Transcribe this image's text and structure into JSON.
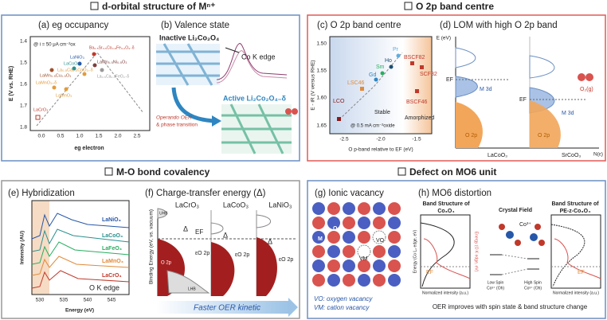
{
  "sections": [
    {
      "header": "d-orbital structure of Mⁿ⁺",
      "panels": [
        {
          "title": "(a) eg occupancy",
          "y_label": "E (V vs. RHE)",
          "x_label": "eg electron",
          "y_ticks": [
            "1.4",
            "1.5",
            "1.6",
            "1.7",
            "1.8"
          ],
          "x_ticks": [
            "0.0",
            "0.5",
            "1.0",
            "1.5",
            "2.0",
            "2.5"
          ],
          "note": "@ i = 50 μA cm⁻²ox",
          "labels": [
            "LaNiO₃",
            "LaCoO₃",
            "La₀.₅Ca₀.₅CoO₃₋δ",
            "LaMn₀.₅Cu₀.₅O₃",
            "LaMnO₃",
            "LaMnO₃₊δ",
            "LaCrO₃",
            "Ba₀.₅Sr₀.₅Co₀.₈Fe₀.₂O₃₋δ",
            "LaMn₀.₅Ni₀.₅O₃",
            "La₀.₅Ca₀.₅FeO₃₋δ"
          ]
        },
        {
          "title": "(b) Valence state",
          "labels": [
            "Inactive Li₂Co₂O₄",
            "Co K edge",
            "Active Li₂Co₂O₄₋δ",
            "Operando OER",
            "& phase transition"
          ]
        }
      ]
    },
    {
      "header": "O 2p band centre",
      "panels": [
        {
          "title": "(c) O 2p band centre",
          "y_label": "E - iR (V versus RHE)",
          "x_label": "O p-band relative to EF (eV)",
          "y_ticks": [
            "1.50",
            "1.55",
            "1.60",
            "1.65"
          ],
          "x_ticks": [
            "-2.5",
            "-2.0",
            "-1.5"
          ],
          "labels": [
            "LCO",
            "LSC46",
            "Gd",
            "Sm",
            "Ho",
            "Pr",
            "BSCF82",
            "SCF82",
            "BSCF46",
            "Stable",
            "Amorphized",
            "@ 0.5 mA cm⁻²oxide"
          ]
        },
        {
          "title": "(d) LOM with high O 2p band",
          "labels": [
            "E (eV)",
            "EF",
            "M 3d",
            "O 2p",
            "LaCoO₃",
            "EF",
            "M 3d",
            "O 2p",
            "SrCoO₃",
            "N(ε)",
            "O₂(g)"
          ]
        }
      ]
    },
    {
      "header": "M-O bond covalency",
      "panels": [
        {
          "title": "(e) Hybridization",
          "y_label": "Intensity (AU)",
          "x_label": "Energy (eV)",
          "x_ticks": [
            "530",
            "535",
            "540",
            "545"
          ],
          "labels": [
            "LaNiO₃",
            "LaCoO₃",
            "LaFeO₃",
            "LaMnO₃",
            "LaCrO₃",
            "O K edge"
          ]
        },
        {
          "title": "(f) Charge-transfer energy (Δ)",
          "y_label": "Binding Energy (eV, vs. vacuum)",
          "compounds": [
            "LaCrO₃",
            "LaCoO₃",
            "LaNiO₃"
          ],
          "labels": [
            "UHB",
            "LHB",
            "O 2p",
            "Δ",
            "EF",
            "εO 2p",
            "Δ",
            "εO 2p",
            "Δ",
            "εO 2p"
          ],
          "arrow": "Faster OER kinetic"
        }
      ]
    },
    {
      "header": "Defect on MO6 unit",
      "panels": [
        {
          "title": "(g) Ionic vacancy",
          "labels": [
            "M",
            "O",
            "VO",
            "VM"
          ],
          "legend": [
            "VO: oxygen vacancy",
            "VM: cation vacancy"
          ]
        },
        {
          "title": "(h) MO6 distortion",
          "labels": [
            "Band Structure of",
            "Co₃O₄",
            "Crystal Field",
            "Co³⁺",
            "Band Structure of",
            "PE-z-Co₃O₄",
            "Low Spin",
            "Co³⁺ (Oh)",
            "High Spin",
            "Co³⁺ (Oh)",
            "Normalized intensity (a.u.)",
            "Normalized intensity (a.u.)",
            "Energy (Co L₂ edge, eV)",
            "Energy (O K edge, eV)",
            "EF",
            "EF"
          ],
          "caption": "OER improves with spin state & band structure change"
        }
      ]
    }
  ]
}
